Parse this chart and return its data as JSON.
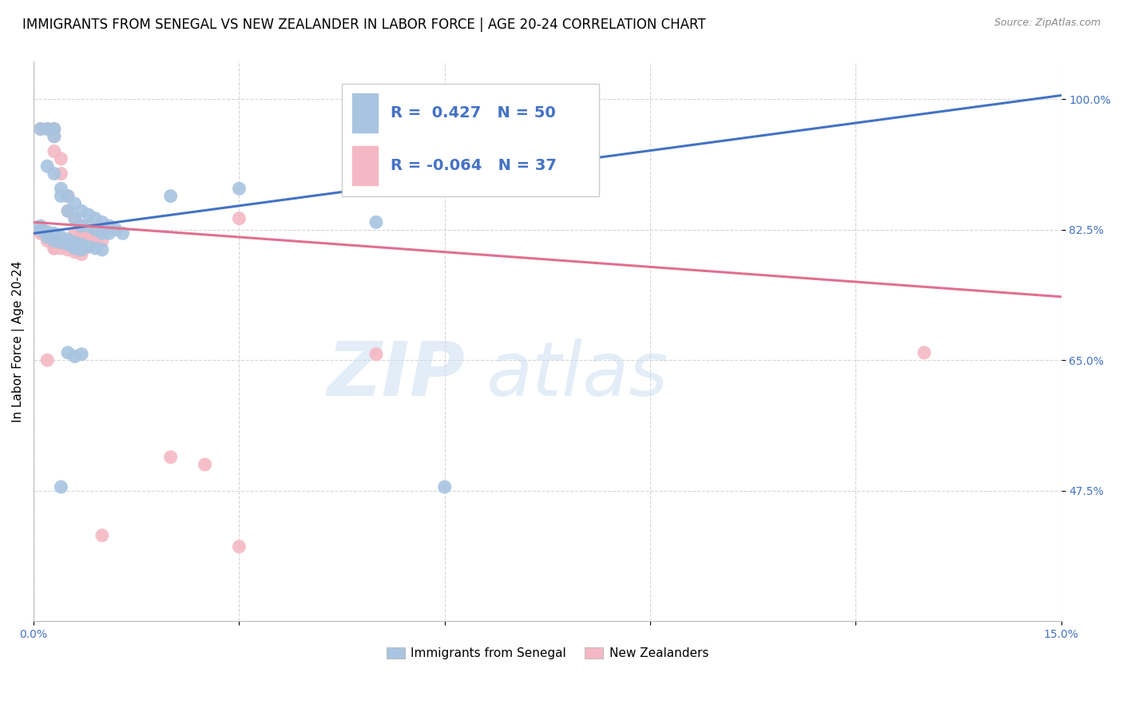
{
  "title": "IMMIGRANTS FROM SENEGAL VS NEW ZEALANDER IN LABOR FORCE | AGE 20-24 CORRELATION CHART",
  "source": "Source: ZipAtlas.com",
  "ylabel": "In Labor Force | Age 20-24",
  "xlim": [
    0.0,
    0.15
  ],
  "ylim": [
    0.3,
    1.05
  ],
  "xticks": [
    0.0,
    0.03,
    0.06,
    0.09,
    0.12,
    0.15
  ],
  "xticklabels": [
    "0.0%",
    "",
    "",
    "",
    "",
    "15.0%"
  ],
  "yticks": [
    0.475,
    0.65,
    0.825,
    1.0
  ],
  "yticklabels": [
    "47.5%",
    "65.0%",
    "82.5%",
    "100.0%"
  ],
  "watermark_zip": "ZIP",
  "watermark_atlas": "atlas",
  "legend_r_blue": "R =  0.427",
  "legend_n_blue": "N = 50",
  "legend_r_pink": "R = -0.064",
  "legend_n_pink": "N = 37",
  "blue_color": "#a8c4e0",
  "pink_color": "#f4b8c4",
  "line_blue": "#4472c4",
  "line_pink": "#e07090",
  "blue_scatter": [
    [
      0.001,
      0.96
    ],
    [
      0.002,
      0.96
    ],
    [
      0.003,
      0.96
    ],
    [
      0.003,
      0.95
    ],
    [
      0.002,
      0.91
    ],
    [
      0.003,
      0.9
    ],
    [
      0.004,
      0.88
    ],
    [
      0.004,
      0.87
    ],
    [
      0.005,
      0.87
    ],
    [
      0.005,
      0.85
    ],
    [
      0.006,
      0.86
    ],
    [
      0.006,
      0.84
    ],
    [
      0.007,
      0.85
    ],
    [
      0.007,
      0.83
    ],
    [
      0.008,
      0.845
    ],
    [
      0.008,
      0.83
    ],
    [
      0.009,
      0.84
    ],
    [
      0.009,
      0.825
    ],
    [
      0.01,
      0.835
    ],
    [
      0.01,
      0.82
    ],
    [
      0.011,
      0.83
    ],
    [
      0.011,
      0.82
    ],
    [
      0.012,
      0.825
    ],
    [
      0.013,
      0.82
    ],
    [
      0.001,
      0.825
    ],
    [
      0.002,
      0.82
    ],
    [
      0.002,
      0.815
    ],
    [
      0.003,
      0.82
    ],
    [
      0.003,
      0.81
    ],
    [
      0.004,
      0.815
    ],
    [
      0.004,
      0.808
    ],
    [
      0.005,
      0.812
    ],
    [
      0.005,
      0.805
    ],
    [
      0.006,
      0.808
    ],
    [
      0.006,
      0.8
    ],
    [
      0.007,
      0.805
    ],
    [
      0.007,
      0.798
    ],
    [
      0.008,
      0.802
    ],
    [
      0.009,
      0.8
    ],
    [
      0.01,
      0.798
    ],
    [
      0.02,
      0.87
    ],
    [
      0.03,
      0.88
    ],
    [
      0.05,
      0.835
    ],
    [
      0.005,
      0.66
    ],
    [
      0.006,
      0.655
    ],
    [
      0.007,
      0.658
    ],
    [
      0.004,
      0.48
    ],
    [
      0.06,
      0.48
    ],
    [
      0.001,
      0.83
    ],
    [
      0.002,
      0.822
    ]
  ],
  "pink_scatter": [
    [
      0.001,
      0.96
    ],
    [
      0.002,
      0.96
    ],
    [
      0.003,
      0.96
    ],
    [
      0.003,
      0.95
    ],
    [
      0.003,
      0.93
    ],
    [
      0.004,
      0.92
    ],
    [
      0.004,
      0.9
    ],
    [
      0.005,
      0.87
    ],
    [
      0.005,
      0.85
    ],
    [
      0.006,
      0.84
    ],
    [
      0.006,
      0.82
    ],
    [
      0.007,
      0.83
    ],
    [
      0.007,
      0.82
    ],
    [
      0.008,
      0.82
    ],
    [
      0.008,
      0.815
    ],
    [
      0.009,
      0.818
    ],
    [
      0.009,
      0.81
    ],
    [
      0.01,
      0.82
    ],
    [
      0.01,
      0.81
    ],
    [
      0.001,
      0.822
    ],
    [
      0.002,
      0.81
    ],
    [
      0.003,
      0.808
    ],
    [
      0.003,
      0.8
    ],
    [
      0.004,
      0.8
    ],
    [
      0.005,
      0.798
    ],
    [
      0.006,
      0.795
    ],
    [
      0.007,
      0.792
    ],
    [
      0.03,
      0.84
    ],
    [
      0.05,
      0.658
    ],
    [
      0.13,
      0.66
    ],
    [
      0.002,
      0.65
    ],
    [
      0.02,
      0.52
    ],
    [
      0.025,
      0.51
    ],
    [
      0.01,
      0.415
    ],
    [
      0.03,
      0.4
    ],
    [
      0.003,
      0.8
    ],
    [
      0.001,
      0.82
    ]
  ],
  "blue_trendline": [
    [
      0.0,
      0.82
    ],
    [
      0.15,
      1.005
    ]
  ],
  "pink_trendline": [
    [
      0.0,
      0.835
    ],
    [
      0.15,
      0.735
    ]
  ],
  "background_color": "#ffffff",
  "grid_color": "#cccccc",
  "title_fontsize": 12,
  "axis_label_fontsize": 11,
  "tick_fontsize": 10,
  "legend_fontsize": 13
}
